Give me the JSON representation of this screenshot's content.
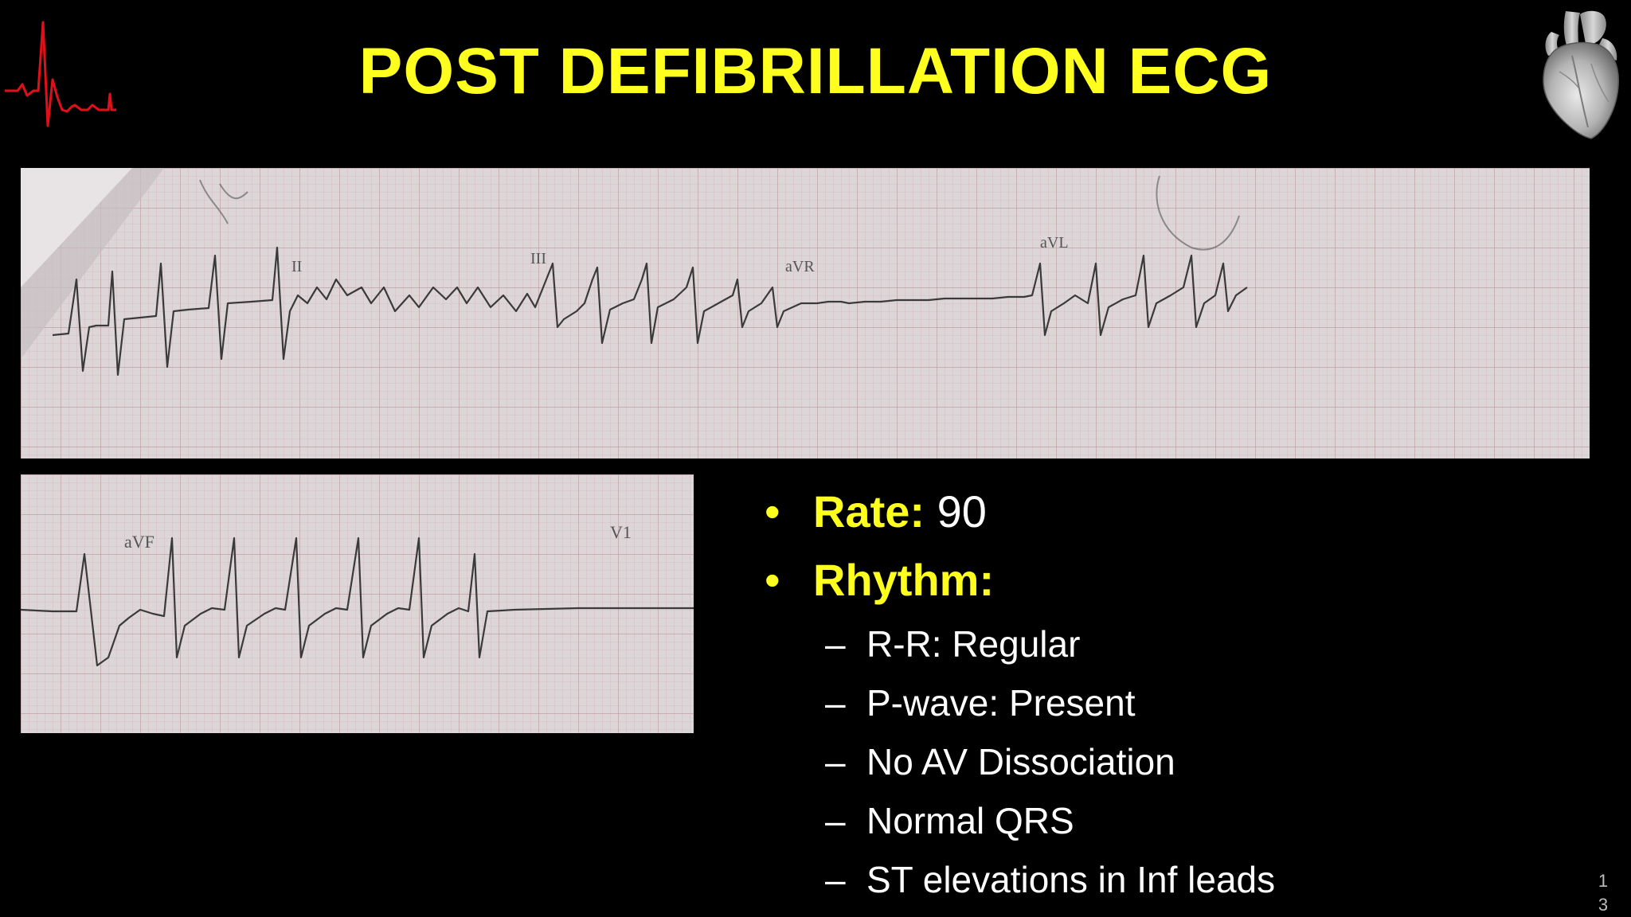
{
  "slide": {
    "title": "POST DEFIBRILLATION ECG",
    "slide_number": "13",
    "colors": {
      "background": "#000000",
      "title": "#ffff1f",
      "bullet_text": "#ffffff",
      "accent": "#ffff1f",
      "ecg_logo": "#e0101a"
    }
  },
  "ecg_strip_top": {
    "lead_labels": [
      "II",
      "III",
      "aVR",
      "aVL"
    ]
  },
  "ecg_strip_bottom": {
    "lead_labels": [
      "aVF",
      "V1"
    ]
  },
  "bullets": [
    {
      "key": "Rate:",
      "value": "90"
    },
    {
      "key": "Rhythm:",
      "value": ""
    }
  ],
  "sub_items": [
    "R-R: Regular",
    "P-wave: Present",
    "No AV Dissociation",
    "Normal QRS",
    "ST elevations in Inf leads"
  ],
  "icons": {
    "logo": "heartbeat-icon",
    "heart": "anatomical-heart-icon"
  }
}
